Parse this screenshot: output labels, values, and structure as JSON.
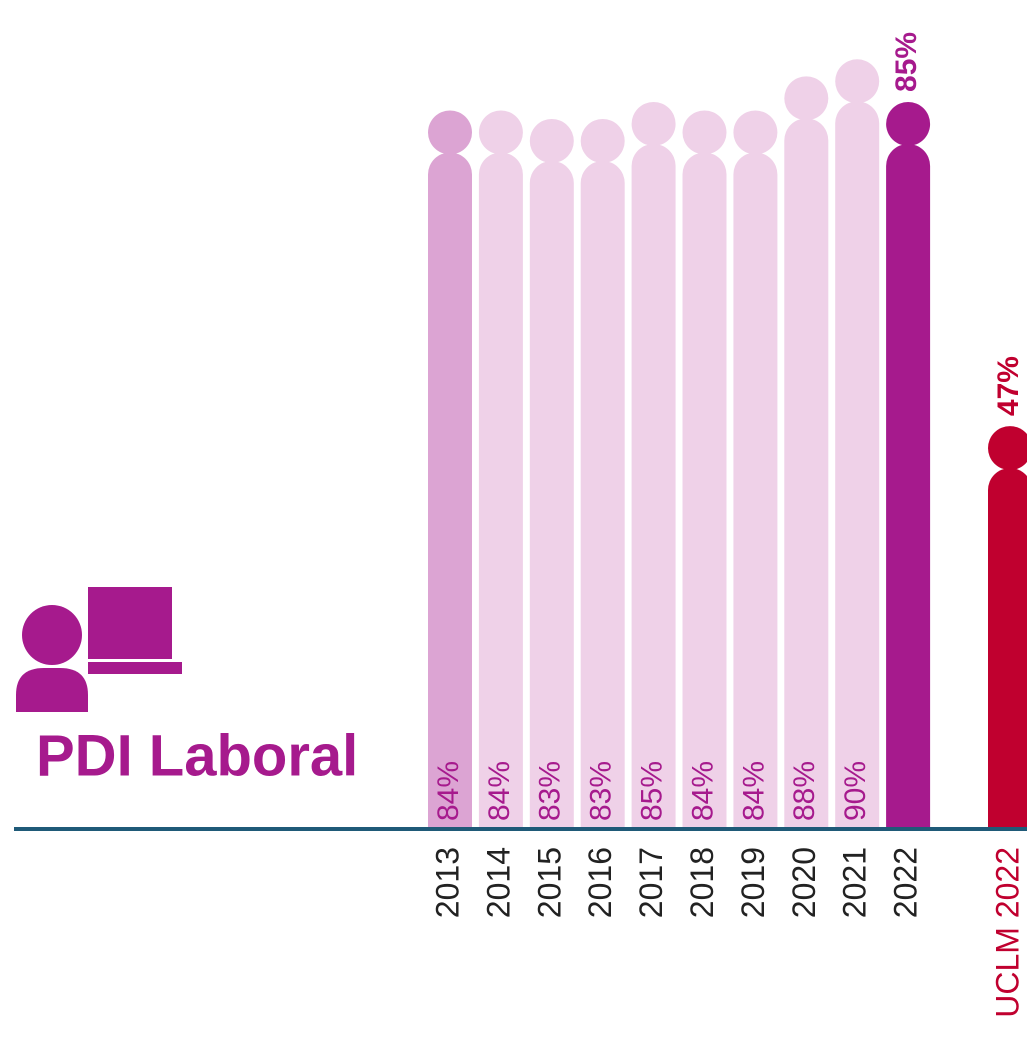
{
  "chart_data": {
    "type": "bar",
    "title": "PDI Laboral",
    "categories": [
      "2013",
      "2014",
      "2015",
      "2016",
      "2017",
      "2018",
      "2019",
      "2020",
      "2021",
      "2022",
      "UCLM 2022"
    ],
    "values": [
      84,
      84,
      83,
      83,
      85,
      84,
      84,
      88,
      90,
      85,
      47
    ],
    "value_labels": [
      "84%",
      "84%",
      "83%",
      "83%",
      "85%",
      "84%",
      "84%",
      "88%",
      "90%",
      "85%",
      "47%"
    ],
    "colors": [
      "#dca4d3",
      "#efd1e8",
      "#efd1e8",
      "#efd1e8",
      "#efd1e8",
      "#efd1e8",
      "#efd1e8",
      "#efd1e8",
      "#efd1e8",
      "#a61a8d",
      "#c0002f"
    ],
    "ylim": [
      0,
      100
    ]
  }
}
